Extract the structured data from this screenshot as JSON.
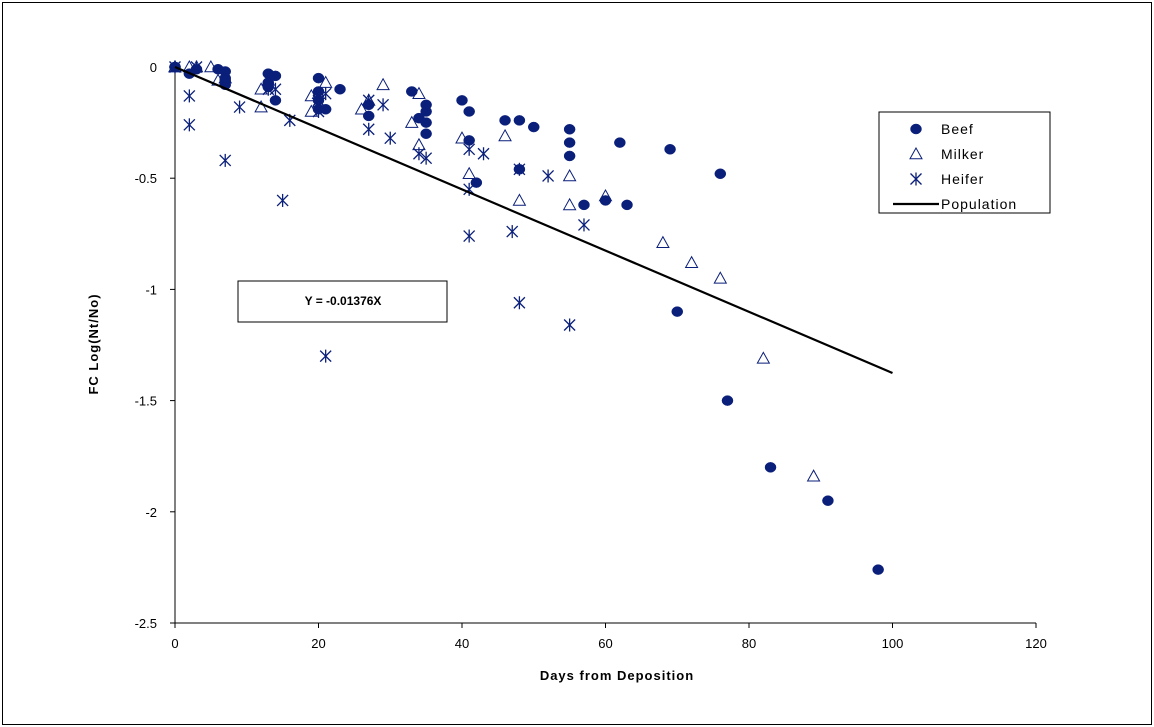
{
  "chart_data": {
    "type": "scatter",
    "xlabel": "Days from Deposition",
    "ylabel": "FC Log(Nt/No)",
    "xlim": [
      0,
      120
    ],
    "ylim": [
      -2.5,
      0
    ],
    "x_ticks": [
      "0",
      "20",
      "40",
      "60",
      "80",
      "100",
      "120"
    ],
    "y_ticks": [
      "0",
      "-0.5",
      "-1",
      "-1.5",
      "-2",
      "-2.5"
    ],
    "x_tick_values": [
      0,
      20,
      40,
      60,
      80,
      100,
      120
    ],
    "y_tick_values": [
      0,
      -0.5,
      -1,
      -1.5,
      -2,
      -2.5
    ],
    "grid": false,
    "legend_position": "top-right",
    "annotation": "Y = -0.01376X",
    "series": [
      {
        "name": "Beef",
        "marker": "filled-circle",
        "color": "#0a1f7a",
        "points": [
          [
            0,
            0
          ],
          [
            0,
            0
          ],
          [
            0,
            0
          ],
          [
            2,
            -0.03
          ],
          [
            3,
            -0.01
          ],
          [
            6,
            -0.01
          ],
          [
            7,
            -0.02
          ],
          [
            7,
            -0.05
          ],
          [
            7,
            -0.08
          ],
          [
            7,
            -0.06
          ],
          [
            13,
            -0.03
          ],
          [
            13,
            -0.07
          ],
          [
            13,
            -0.09
          ],
          [
            14,
            -0.04
          ],
          [
            14,
            -0.15
          ],
          [
            20,
            -0.05
          ],
          [
            20,
            -0.11
          ],
          [
            20,
            -0.15
          ],
          [
            20,
            -0.19
          ],
          [
            21,
            -0.19
          ],
          [
            23,
            -0.1
          ],
          [
            27,
            -0.17
          ],
          [
            27,
            -0.22
          ],
          [
            33,
            -0.11
          ],
          [
            34,
            -0.23
          ],
          [
            35,
            -0.17
          ],
          [
            35,
            -0.2
          ],
          [
            35,
            -0.25
          ],
          [
            35,
            -0.3
          ],
          [
            40,
            -0.15
          ],
          [
            41,
            -0.2
          ],
          [
            41,
            -0.33
          ],
          [
            42,
            -0.52
          ],
          [
            46,
            -0.24
          ],
          [
            48,
            -0.24
          ],
          [
            48,
            -0.46
          ],
          [
            50,
            -0.27
          ],
          [
            55,
            -0.28
          ],
          [
            55,
            -0.34
          ],
          [
            55,
            -0.4
          ],
          [
            57,
            -0.62
          ],
          [
            60,
            -0.6
          ],
          [
            62,
            -0.34
          ],
          [
            63,
            -0.62
          ],
          [
            69,
            -0.37
          ],
          [
            70,
            -1.1
          ],
          [
            76,
            -0.48
          ],
          [
            77,
            -1.5
          ],
          [
            83,
            -1.8
          ],
          [
            91,
            -1.95
          ],
          [
            98,
            -2.26
          ]
        ]
      },
      {
        "name": "Milker",
        "marker": "open-triangle",
        "color": "#0a1f7a",
        "points": [
          [
            0,
            0
          ],
          [
            0,
            0
          ],
          [
            2,
            0
          ],
          [
            3,
            0
          ],
          [
            5,
            0
          ],
          [
            6,
            -0.06
          ],
          [
            7,
            -0.05
          ],
          [
            12,
            -0.1
          ],
          [
            12,
            -0.18
          ],
          [
            13,
            -0.06
          ],
          [
            19,
            -0.2
          ],
          [
            19,
            -0.13
          ],
          [
            20,
            -0.12
          ],
          [
            21,
            -0.07
          ],
          [
            26,
            -0.19
          ],
          [
            27,
            -0.15
          ],
          [
            29,
            -0.08
          ],
          [
            33,
            -0.25
          ],
          [
            34,
            -0.12
          ],
          [
            34,
            -0.35
          ],
          [
            40,
            -0.32
          ],
          [
            41,
            -0.48
          ],
          [
            46,
            -0.31
          ],
          [
            48,
            -0.6
          ],
          [
            55,
            -0.49
          ],
          [
            55,
            -0.62
          ],
          [
            60,
            -0.58
          ],
          [
            68,
            -0.79
          ],
          [
            72,
            -0.88
          ],
          [
            76,
            -0.95
          ],
          [
            82,
            -1.31
          ],
          [
            89,
            -1.84
          ]
        ]
      },
      {
        "name": "Heifer",
        "marker": "asterisk",
        "color": "#0a1f7a",
        "points": [
          [
            0,
            0
          ],
          [
            2,
            -0.13
          ],
          [
            2,
            -0.26
          ],
          [
            3,
            0
          ],
          [
            7,
            -0.42
          ],
          [
            9,
            -0.18
          ],
          [
            13,
            -0.1
          ],
          [
            14,
            -0.1
          ],
          [
            15,
            -0.6
          ],
          [
            16,
            -0.24
          ],
          [
            20,
            -0.2
          ],
          [
            20,
            -0.15
          ],
          [
            21,
            -0.12
          ],
          [
            21,
            -1.3
          ],
          [
            27,
            -0.15
          ],
          [
            27,
            -0.28
          ],
          [
            29,
            -0.17
          ],
          [
            30,
            -0.32
          ],
          [
            34,
            -0.39
          ],
          [
            35,
            -0.41
          ],
          [
            41,
            -0.37
          ],
          [
            41,
            -0.55
          ],
          [
            41,
            -0.76
          ],
          [
            43,
            -0.39
          ],
          [
            47,
            -0.74
          ],
          [
            48,
            -0.46
          ],
          [
            48,
            -1.06
          ],
          [
            52,
            -0.49
          ],
          [
            55,
            -1.16
          ],
          [
            57,
            -0.71
          ]
        ]
      },
      {
        "name": "Population",
        "type": "line",
        "color": "#000000",
        "x": [
          0,
          100
        ],
        "y": [
          0,
          -1.376
        ]
      }
    ]
  }
}
